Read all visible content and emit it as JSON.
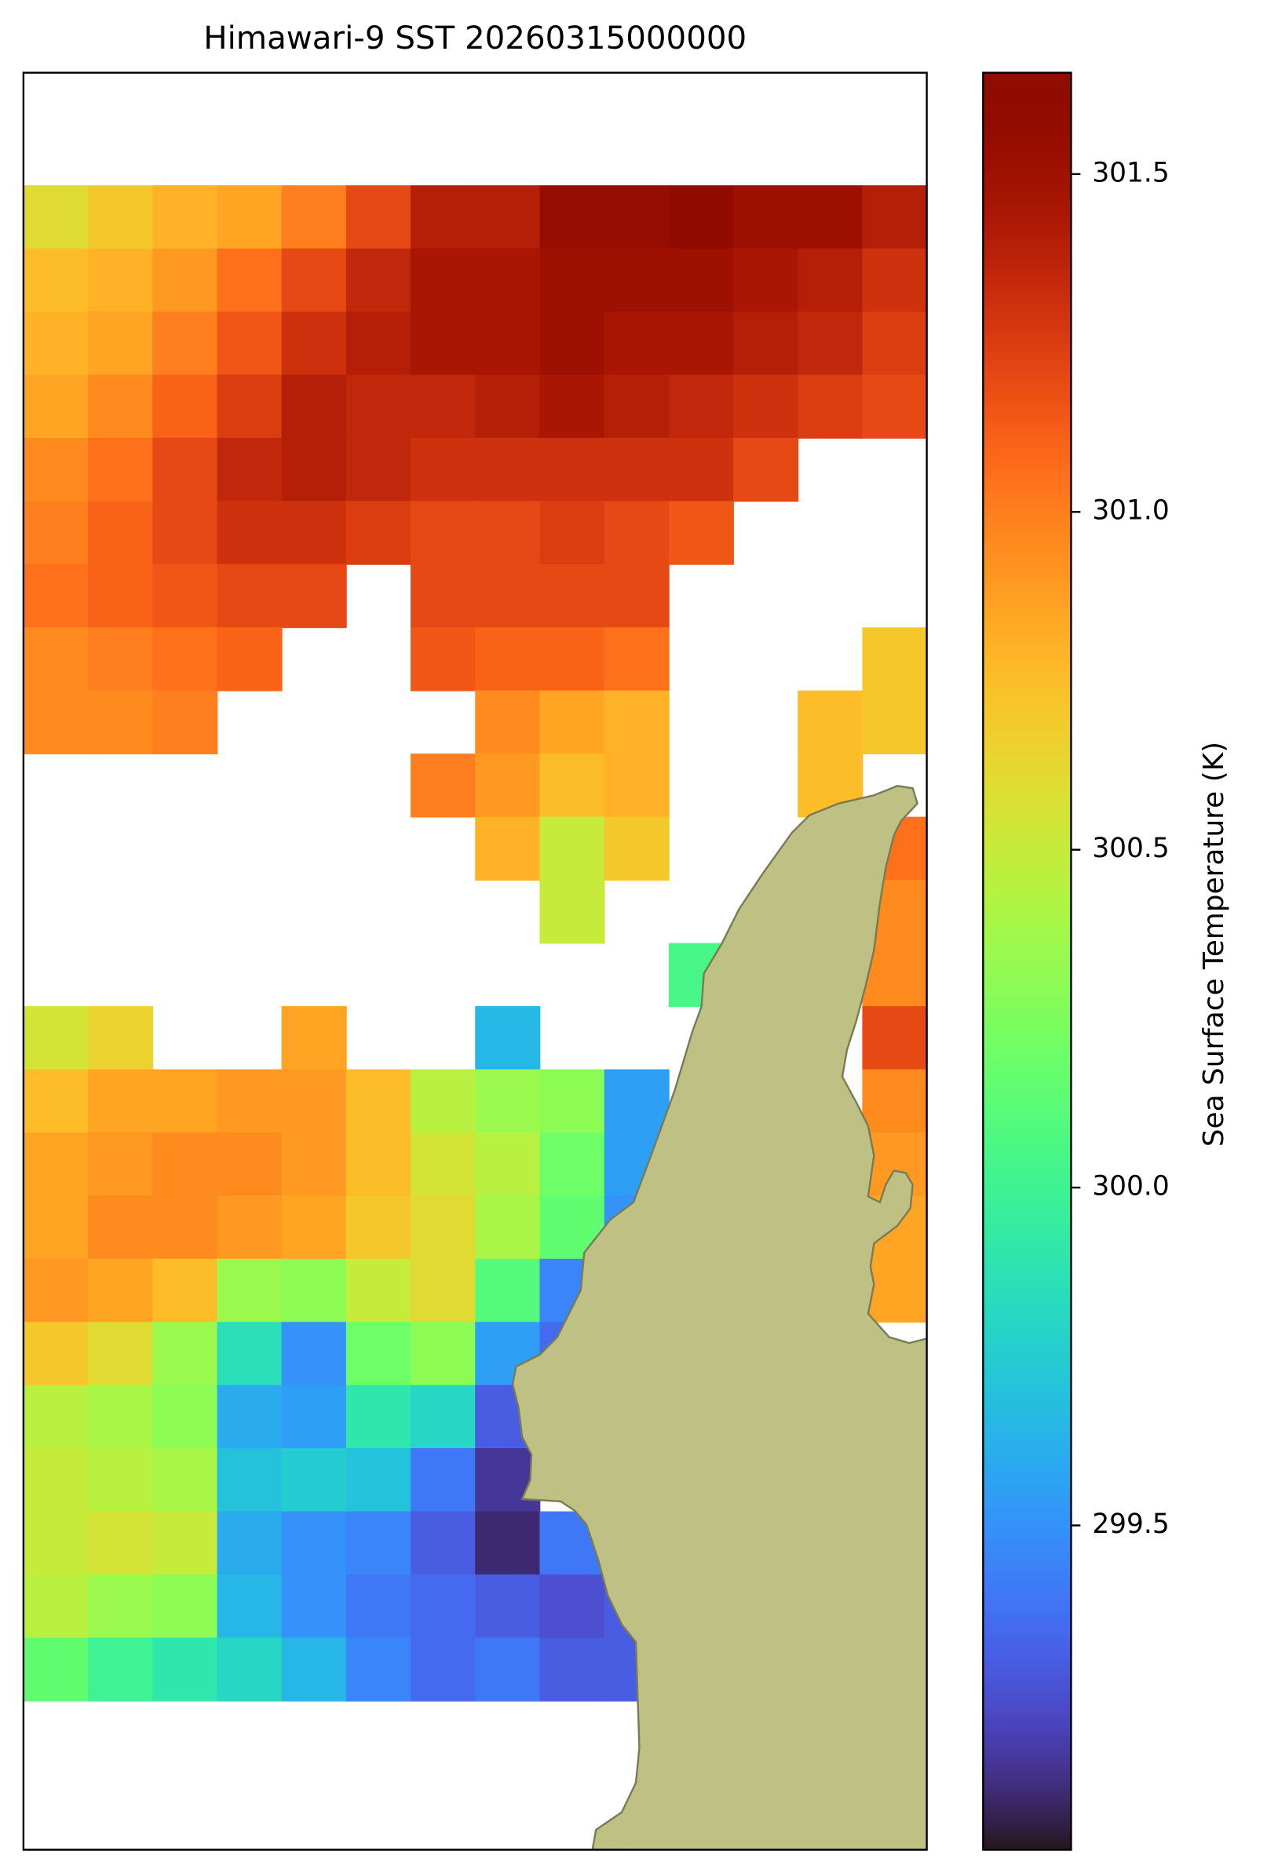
{
  "chart_data": {
    "type": "heatmap",
    "title": "Himawari-9 SST 20260315000000",
    "colorbar_label": "Sea Surface Temperature (K)",
    "colormap": "turbo",
    "clim": [
      299.02,
      301.65
    ],
    "cticks": [
      299.5,
      {
        "value": 300,
        "label": "300.0"
      },
      300.5,
      {
        "value": 301,
        "label": "301.0"
      },
      301.5
    ],
    "values": [
      [
        300.6,
        300.7,
        300.8,
        300.85,
        301.0,
        301.2,
        301.4,
        301.4,
        301.55,
        301.55,
        301.6,
        301.5,
        301.5,
        301.4
      ],
      [
        300.75,
        300.8,
        300.9,
        301.05,
        301.2,
        301.35,
        301.45,
        301.45,
        301.5,
        301.5,
        301.5,
        301.45,
        301.4,
        301.3
      ],
      [
        300.8,
        300.85,
        301.0,
        301.15,
        301.3,
        301.4,
        301.45,
        301.45,
        301.5,
        301.45,
        301.45,
        301.4,
        301.35,
        301.25
      ],
      [
        300.85,
        300.95,
        301.1,
        301.25,
        301.4,
        301.35,
        301.35,
        301.4,
        301.45,
        301.4,
        301.35,
        301.3,
        301.25,
        301.2
      ],
      [
        300.95,
        301.05,
        301.2,
        301.35,
        301.4,
        301.35,
        301.3,
        301.3,
        301.3,
        301.3,
        301.3,
        301.2,
        null,
        null
      ],
      [
        301.0,
        301.1,
        301.2,
        301.3,
        301.3,
        301.25,
        301.2,
        301.2,
        301.25,
        301.2,
        301.15,
        null,
        null,
        null
      ],
      [
        301.05,
        301.1,
        301.15,
        301.2,
        301.2,
        null,
        301.2,
        301.2,
        301.2,
        301.2,
        null,
        null,
        null,
        null
      ],
      [
        300.95,
        301.0,
        301.05,
        301.1,
        null,
        null,
        301.15,
        301.1,
        301.1,
        301.05,
        null,
        null,
        null,
        300.7
      ],
      [
        300.95,
        300.95,
        301.0,
        null,
        null,
        null,
        null,
        300.95,
        300.85,
        300.8,
        null,
        null,
        300.75,
        300.7
      ],
      [
        null,
        null,
        null,
        null,
        null,
        null,
        301.0,
        300.9,
        300.75,
        300.8,
        null,
        null,
        300.75,
        null
      ],
      [
        null,
        null,
        null,
        null,
        null,
        null,
        null,
        300.8,
        300.5,
        300.7,
        null,
        null,
        null,
        301.05
      ],
      [
        null,
        null,
        null,
        null,
        null,
        null,
        null,
        null,
        300.5,
        null,
        null,
        null,
        null,
        300.95
      ],
      [
        null,
        null,
        null,
        null,
        null,
        null,
        null,
        null,
        null,
        null,
        300.05,
        null,
        null,
        300.95
      ],
      [
        300.55,
        300.65,
        null,
        null,
        300.85,
        null,
        null,
        299.65,
        null,
        null,
        null,
        null,
        null,
        301.2
      ],
      [
        300.75,
        300.85,
        300.85,
        300.9,
        300.9,
        300.75,
        300.45,
        300.35,
        300.3,
        299.55,
        null,
        null,
        null,
        300.95
      ],
      [
        300.85,
        300.9,
        300.95,
        300.95,
        300.9,
        300.75,
        300.55,
        300.45,
        300.2,
        299.55,
        null,
        null,
        null,
        300.9
      ],
      [
        300.85,
        300.95,
        300.95,
        300.9,
        300.85,
        300.7,
        300.6,
        300.4,
        300.15,
        299.5,
        null,
        null,
        null,
        300.85
      ],
      [
        300.9,
        300.85,
        300.75,
        300.35,
        300.3,
        300.5,
        300.6,
        300.1,
        299.45,
        null,
        null,
        null,
        null,
        300.85
      ],
      [
        300.7,
        300.6,
        300.35,
        299.85,
        299.5,
        300.2,
        300.3,
        299.55,
        299.35,
        null,
        null,
        null,
        null,
        null
      ],
      [
        300.45,
        300.4,
        300.3,
        299.6,
        299.55,
        299.9,
        299.8,
        299.3,
        null,
        null,
        null,
        null,
        null,
        null
      ],
      [
        300.5,
        300.45,
        300.4,
        299.7,
        299.75,
        299.7,
        299.4,
        299.15,
        null,
        null,
        null,
        null,
        null,
        null
      ],
      [
        300.5,
        300.55,
        300.5,
        299.6,
        299.5,
        299.45,
        299.3,
        299.1,
        299.4,
        299.5,
        null,
        null,
        null,
        null
      ],
      [
        300.45,
        300.35,
        300.3,
        299.65,
        299.5,
        299.4,
        299.35,
        299.3,
        299.25,
        299.3,
        null,
        null,
        null,
        null
      ],
      [
        300.15,
        300.0,
        299.9,
        299.8,
        299.65,
        299.45,
        299.35,
        299.4,
        299.3,
        299.3,
        null,
        null,
        null,
        null
      ]
    ]
  }
}
